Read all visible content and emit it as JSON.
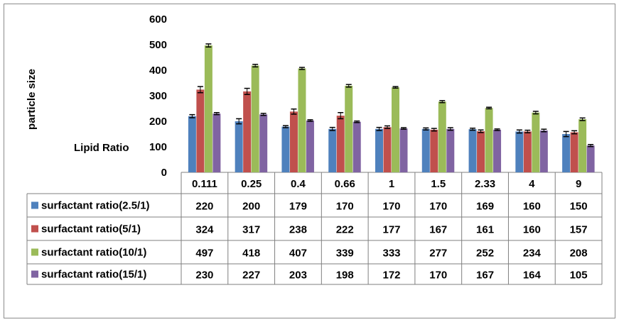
{
  "chart_data": {
    "type": "bar",
    "title": "",
    "ylabel": "particle size",
    "xlabel": "Lipid Ratio",
    "ylim": [
      0,
      600
    ],
    "yticks": [
      0,
      100,
      200,
      300,
      400,
      500,
      600
    ],
    "grid": false,
    "legend_placement": "data-table-left",
    "error_bars": true,
    "categories": [
      "0.111",
      "0.25",
      "0.4",
      "0.66",
      "1",
      "1.5",
      "2.33",
      "4",
      "9"
    ],
    "series": [
      {
        "name": "surfactant ratio(2.5/1)",
        "color": "#4F81BD",
        "values": [
          220,
          200,
          179,
          170,
          170,
          170,
          169,
          160,
          150
        ],
        "errors": [
          6,
          10,
          4,
          6,
          6,
          4,
          4,
          6,
          10
        ]
      },
      {
        "name": "surfactant ratio(5/1)",
        "color": "#C0504D",
        "values": [
          324,
          317,
          238,
          222,
          177,
          167,
          161,
          160,
          157
        ],
        "errors": [
          12,
          12,
          10,
          12,
          5,
          5,
          5,
          5,
          6
        ]
      },
      {
        "name": "surfactant ratio(10/1)",
        "color": "#9BBB59",
        "values": [
          497,
          418,
          407,
          339,
          333,
          277,
          252,
          234,
          208
        ],
        "errors": [
          6,
          5,
          4,
          5,
          3,
          4,
          3,
          5,
          5
        ]
      },
      {
        "name": "surfactant ratio(15/1)",
        "color": "#8064A2",
        "values": [
          230,
          227,
          203,
          198,
          172,
          170,
          167,
          164,
          105
        ],
        "errors": [
          4,
          4,
          3,
          3,
          3,
          5,
          3,
          5,
          4
        ]
      }
    ]
  }
}
